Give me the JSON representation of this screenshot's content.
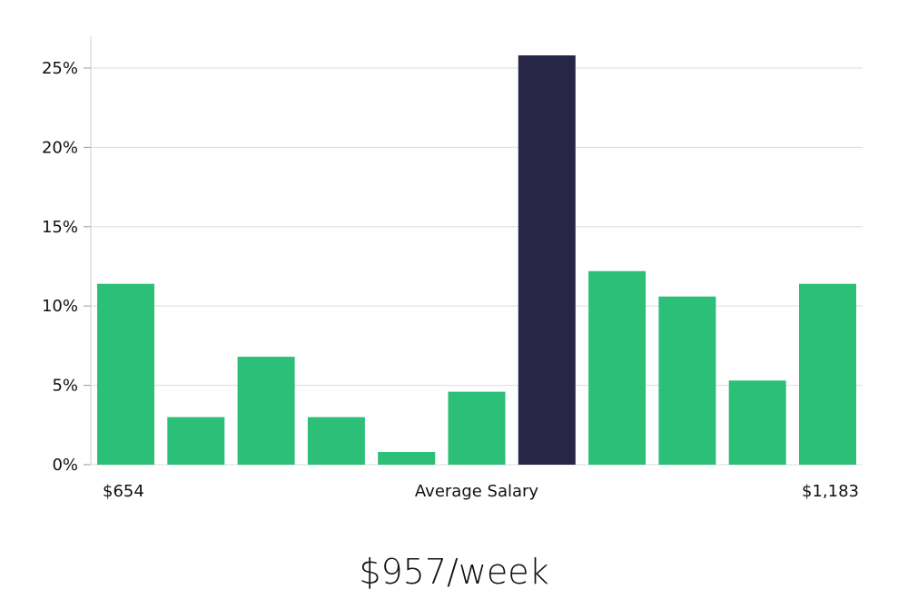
{
  "chart_data": {
    "type": "bar",
    "values": [
      11.4,
      3.0,
      6.8,
      3.0,
      0.8,
      4.6,
      25.8,
      12.2,
      10.6,
      5.3,
      11.4
    ],
    "highlight_index": 6,
    "ylim": [
      0,
      27
    ],
    "yticks": [
      0,
      5,
      10,
      15,
      20,
      25
    ],
    "ytick_format": "%",
    "grid": true,
    "x_labels": {
      "left": "$654",
      "center": "Average Salary",
      "right": "$1,183"
    },
    "colors": {
      "bar": "#2bbf77",
      "highlight": "#272647",
      "grid": "#dddddd",
      "axis": "#cccccc"
    }
  },
  "summary": {
    "value": "$957/week"
  }
}
